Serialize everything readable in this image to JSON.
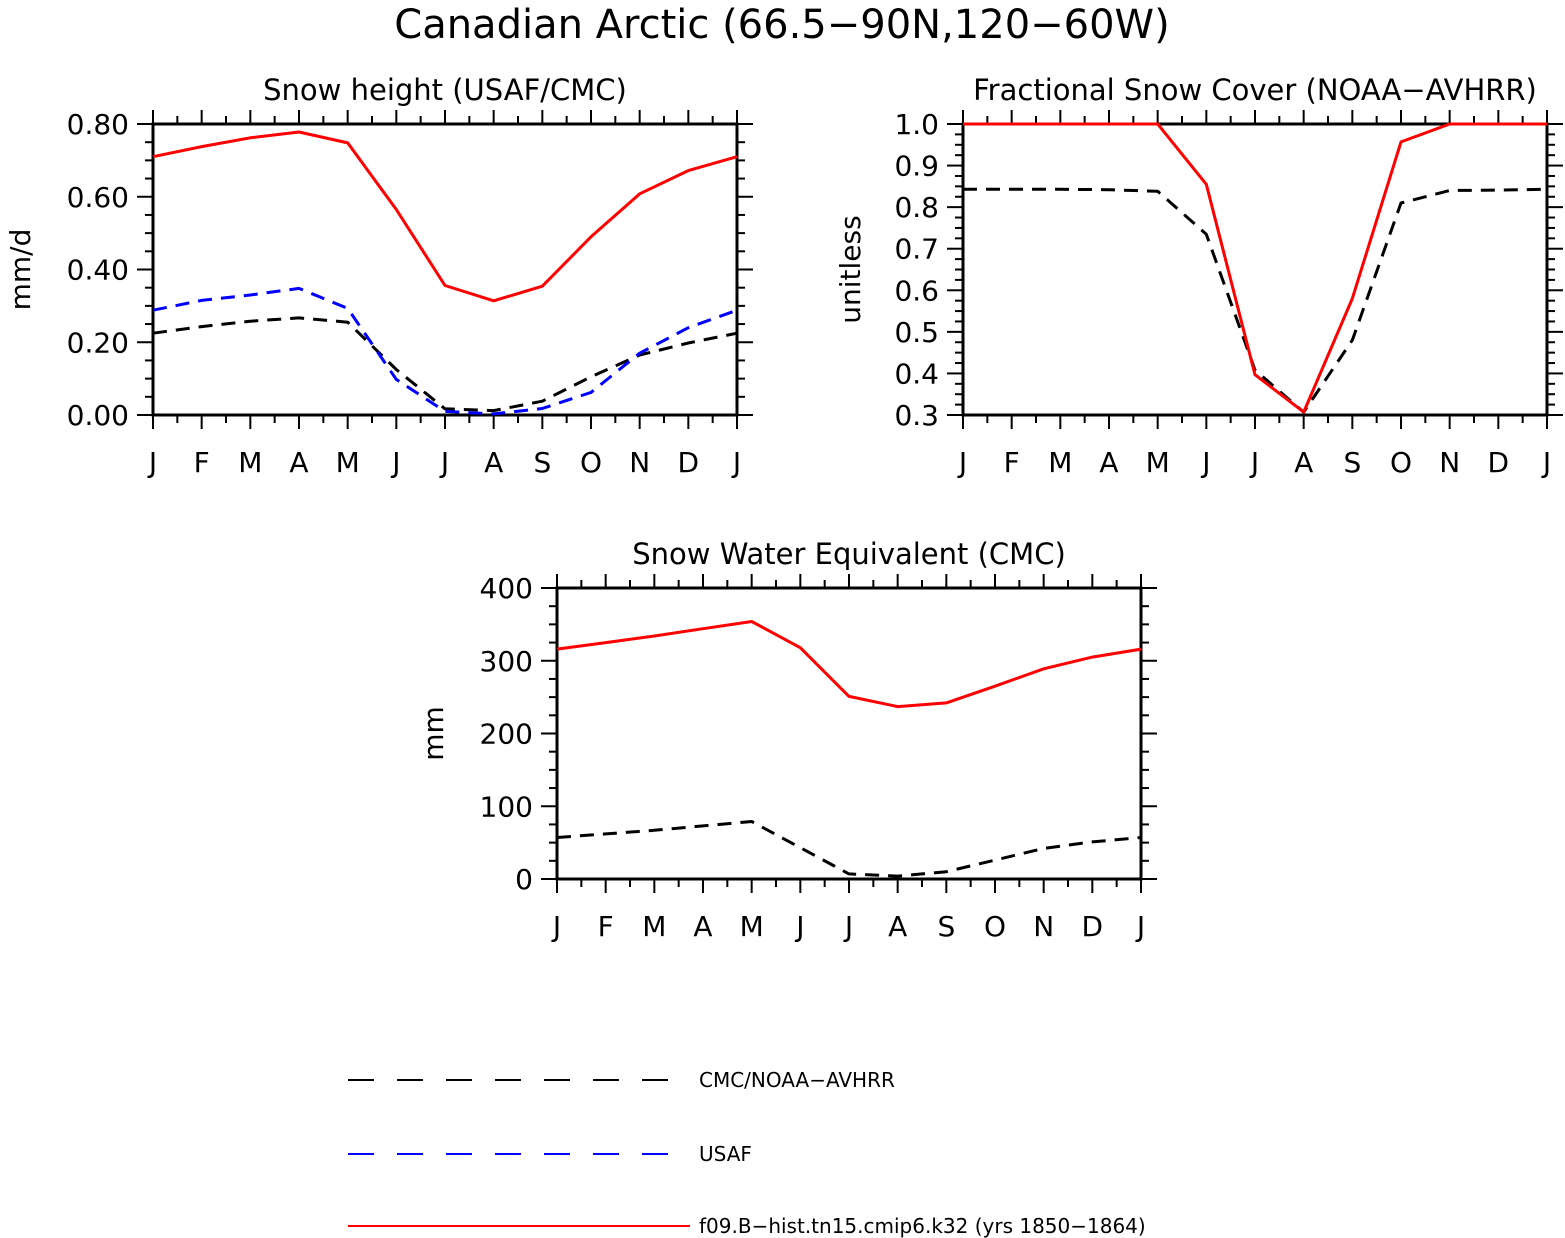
{
  "title": "Canadian Arctic (66.5−90N,120−60W)",
  "legend": [
    {
      "label": "CMC/NOAA−AVHRR",
      "color": "#000000",
      "dash": "dashed"
    },
    {
      "label": "USAF",
      "color": "#0000ff",
      "dash": "dashed"
    },
    {
      "label": "f09.B−hist.tn15.cmip6.k32 (yrs 1850−1864)",
      "color": "#ff0000",
      "dash": "solid"
    }
  ],
  "chart_data": [
    {
      "type": "line",
      "title": "Snow height (USAF/CMC)",
      "xlabel": "",
      "ylabel": "mm/d",
      "categories": [
        "J",
        "F",
        "M",
        "A",
        "M",
        "J",
        "J",
        "A",
        "S",
        "O",
        "N",
        "D",
        "J"
      ],
      "ylim": [
        0,
        0.8
      ],
      "yticks": [
        0.0,
        0.2,
        0.4,
        0.6,
        0.8
      ],
      "ytick_labels": [
        "0.00",
        "0.20",
        "0.40",
        "0.60",
        "0.80"
      ],
      "series": [
        {
          "name": "CMC/NOAA−AVHRR",
          "color": "#000000",
          "dash": "dashed",
          "values": [
            0.225,
            0.243,
            0.258,
            0.267,
            0.255,
            0.125,
            0.017,
            0.012,
            0.038,
            0.105,
            0.165,
            0.198,
            0.225
          ]
        },
        {
          "name": "USAF",
          "color": "#0000ff",
          "dash": "dashed",
          "values": [
            0.288,
            0.315,
            0.33,
            0.348,
            0.293,
            0.098,
            0.01,
            0.003,
            0.018,
            0.062,
            0.17,
            0.24,
            0.288
          ]
        },
        {
          "name": "f09.B−hist.tn15.cmip6.k32 (yrs 1850−1864)",
          "color": "#ff0000",
          "dash": "solid",
          "values": [
            0.71,
            0.738,
            0.762,
            0.778,
            0.748,
            0.565,
            0.356,
            0.314,
            0.354,
            0.49,
            0.608,
            0.672,
            0.71
          ]
        }
      ]
    },
    {
      "type": "line",
      "title": "Fractional Snow Cover (NOAA−AVHRR)",
      "xlabel": "",
      "ylabel": "unitless",
      "categories": [
        "J",
        "F",
        "M",
        "A",
        "M",
        "J",
        "J",
        "A",
        "S",
        "O",
        "N",
        "D",
        "J"
      ],
      "ylim": [
        0.3,
        1.0
      ],
      "yticks": [
        0.3,
        0.4,
        0.5,
        0.6,
        0.7,
        0.8,
        0.9,
        1.0
      ],
      "ytick_labels": [
        "0.3",
        "0.4",
        "0.5",
        "0.6",
        "0.7",
        "0.8",
        "0.9",
        "1.0"
      ],
      "series": [
        {
          "name": "CMC/NOAA−AVHRR",
          "color": "#000000",
          "dash": "dashed",
          "values": [
            0.843,
            0.843,
            0.843,
            0.842,
            0.838,
            0.735,
            0.408,
            0.307,
            0.48,
            0.81,
            0.84,
            0.841,
            0.843
          ]
        },
        {
          "name": "f09.B−hist.tn15.cmip6.k32 (yrs 1850−1864)",
          "color": "#ff0000",
          "dash": "solid",
          "values": [
            1.0,
            1.0,
            1.0,
            1.0,
            1.0,
            0.855,
            0.397,
            0.307,
            0.58,
            0.957,
            1.0,
            1.0,
            1.0
          ]
        }
      ]
    },
    {
      "type": "line",
      "title": "Snow Water Equivalent (CMC)",
      "xlabel": "",
      "ylabel": "mm",
      "categories": [
        "J",
        "F",
        "M",
        "A",
        "M",
        "J",
        "J",
        "A",
        "S",
        "O",
        "N",
        "D",
        "J"
      ],
      "ylim": [
        0,
        400
      ],
      "yticks": [
        0,
        100,
        200,
        300,
        400
      ],
      "ytick_labels": [
        "0",
        "100",
        "200",
        "300",
        "400"
      ],
      "series": [
        {
          "name": "CMC/NOAA−AVHRR",
          "color": "#000000",
          "dash": "dashed",
          "values": [
            57,
            62,
            67,
            73,
            79,
            43,
            7,
            4,
            10,
            26,
            42,
            51,
            57
          ]
        },
        {
          "name": "f09.B−hist.tn15.cmip6.k32 (yrs 1850−1864)",
          "color": "#ff0000",
          "dash": "solid",
          "values": [
            316,
            325,
            334,
            344,
            354,
            318,
            251,
            237,
            242,
            265,
            289,
            305,
            316
          ]
        }
      ]
    }
  ]
}
